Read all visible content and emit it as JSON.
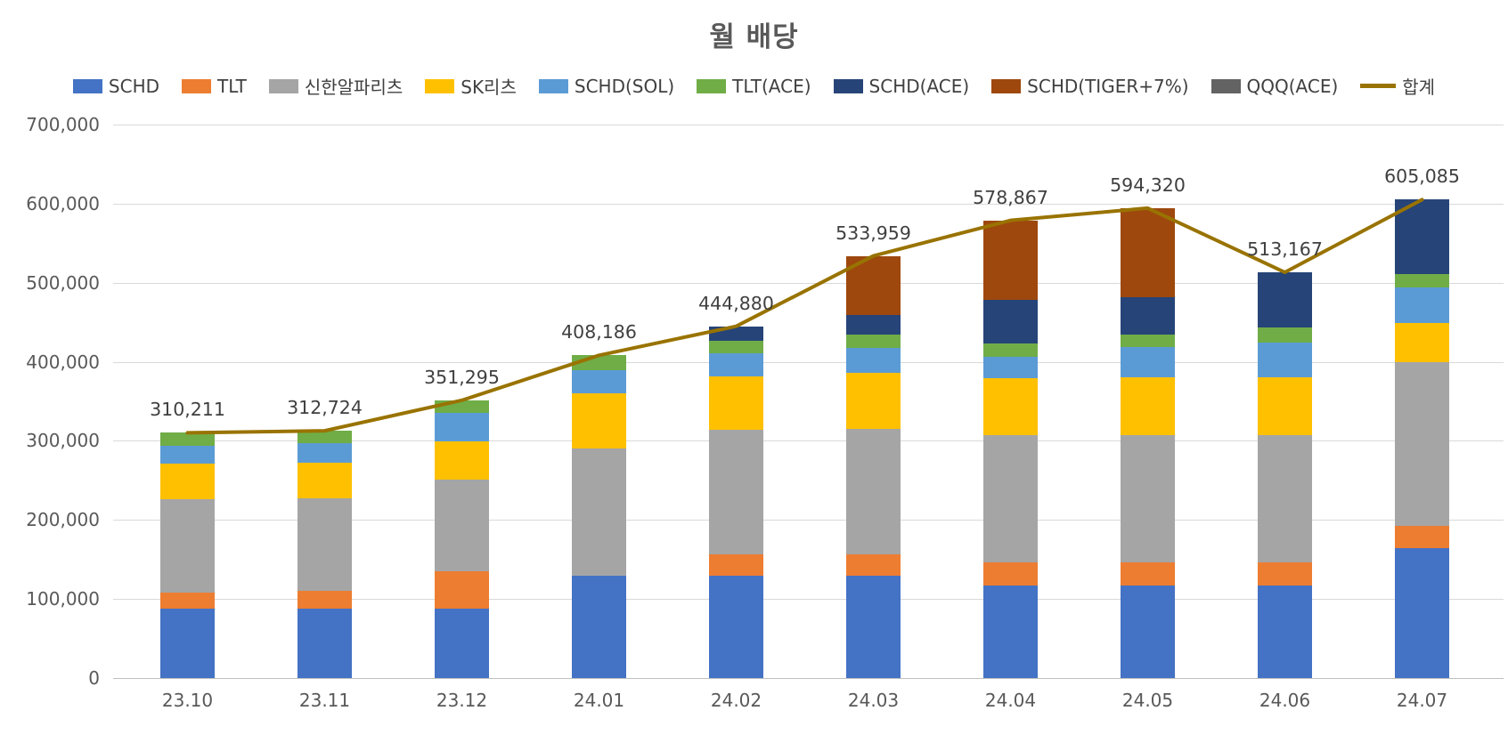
{
  "chart_data": {
    "type": "bar",
    "subtype": "stacked-bars-with-total-line",
    "title": "월 배당",
    "categories": [
      "23.10",
      "23.11",
      "23.12",
      "24.01",
      "24.02",
      "24.03",
      "24.04",
      "24.05",
      "24.06",
      "24.07"
    ],
    "series": [
      {
        "name": "SCHD",
        "color": "#4472C4",
        "values": [
          88000,
          88000,
          88000,
          130000,
          129000,
          129000,
          117000,
          117000,
          117000,
          164000
        ]
      },
      {
        "name": "TLT",
        "color": "#ED7D31",
        "values": [
          20000,
          22000,
          47000,
          0,
          28000,
          28000,
          29000,
          29000,
          29000,
          28000
        ]
      },
      {
        "name": "신한알파리츠",
        "color": "#A5A5A5",
        "values": [
          117711,
          117000,
          116000,
          160000,
          157000,
          158000,
          161000,
          161000,
          161000,
          207000
        ]
      },
      {
        "name": "SK리츠",
        "color": "#FFC000",
        "values": [
          46000,
          45000,
          48500,
          70000,
          68000,
          71000,
          72000,
          73000,
          73000,
          50000
        ]
      },
      {
        "name": "SCHD(SOL)",
        "color": "#5B9BD5",
        "values": [
          21500,
          25000,
          35500,
          29000,
          29000,
          31000,
          27000,
          39000,
          44000,
          45000
        ]
      },
      {
        "name": "TLT(ACE)",
        "color": "#70AD47",
        "values": [
          17000,
          15724,
          16295,
          19186,
          16000,
          17500,
          17000,
          15000,
          19000,
          17500
        ]
      },
      {
        "name": "SCHD(ACE)",
        "color": "#264478",
        "values": [
          0,
          0,
          0,
          0,
          17880,
          24500,
          55000,
          48000,
          70167,
          93585
        ]
      },
      {
        "name": "SCHD(TIGER+7%)",
        "color": "#9E480E",
        "values": [
          0,
          0,
          0,
          0,
          0,
          74959,
          100867,
          112320,
          0,
          0
        ]
      },
      {
        "name": "QQQ(ACE)",
        "color": "#636363",
        "values": [
          0,
          0,
          0,
          0,
          0,
          0,
          0,
          0,
          0,
          0
        ]
      }
    ],
    "line_series": {
      "name": "합계",
      "color": "#997300",
      "values": [
        310211,
        312724,
        351295,
        408186,
        444880,
        533959,
        578867,
        594320,
        513167,
        605085
      ]
    },
    "data_labels": [
      "310,211",
      "312,724",
      "351,295",
      "408,186",
      "444,880",
      "533,959",
      "578,867",
      "594,320",
      "513,167",
      "605,085"
    ],
    "y_axis": {
      "min": 0,
      "max": 700000,
      "step": 100000,
      "tick_labels": [
        "0",
        "100,000",
        "200,000",
        "300,000",
        "400,000",
        "500,000",
        "600,000",
        "700,000"
      ]
    },
    "grid": true,
    "legend_position": "top",
    "colors": {
      "title_text": "#595959",
      "axis_text": "#595959",
      "label_text": "#404040",
      "gridline": "#d9d9d9",
      "axis_line": "#bfbfbf",
      "background": "#ffffff"
    }
  }
}
